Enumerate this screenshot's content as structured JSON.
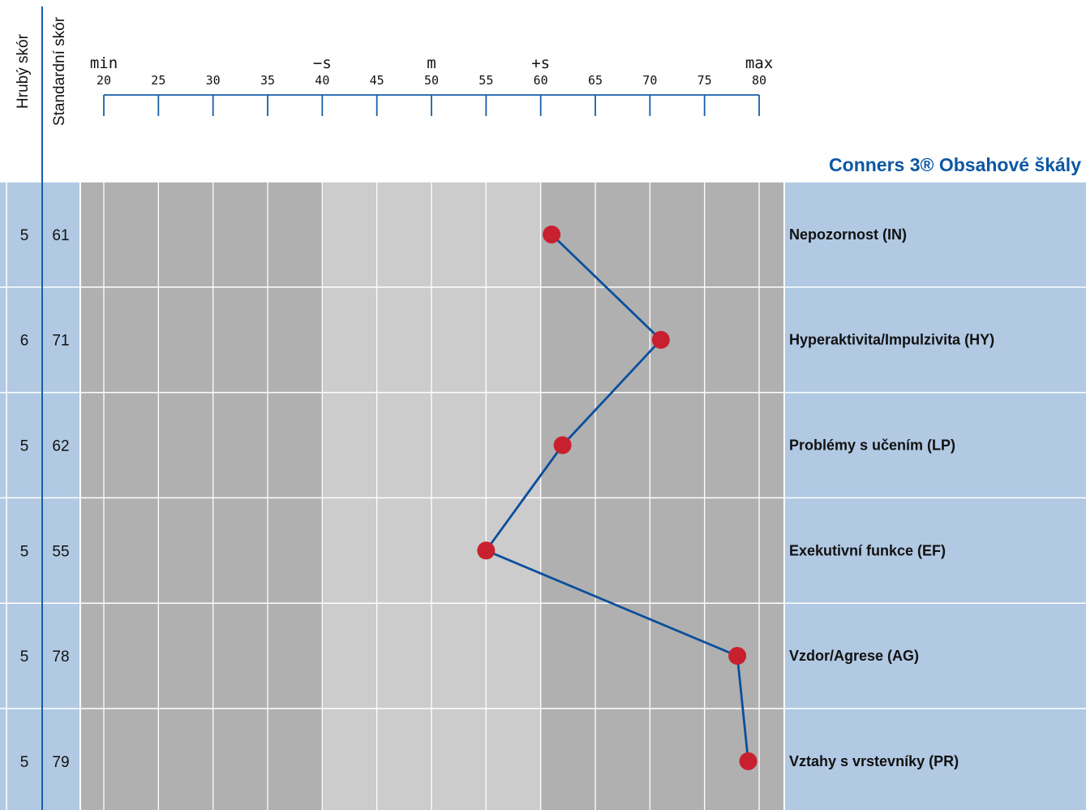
{
  "chart_data": {
    "type": "line",
    "title": "Conners 3® Obsahové škály",
    "column_headers": {
      "raw_score": "Hrubý skór",
      "standard_score": "Standardní skór"
    },
    "axis": {
      "min": 20,
      "max": 80,
      "ticks": [
        20,
        25,
        30,
        35,
        40,
        45,
        50,
        55,
        60,
        65,
        70,
        75,
        80
      ],
      "markers": [
        {
          "label": "min",
          "value": 20
        },
        {
          "label": "−s",
          "value": 40
        },
        {
          "label": "m",
          "value": 50
        },
        {
          "label": "+s",
          "value": 60
        },
        {
          "label": "max",
          "value": 80
        }
      ]
    },
    "shading": {
      "light_band": [
        40,
        60
      ],
      "dark_color": "#b0b0b0",
      "light_color": "#cccccc"
    },
    "rows": [
      {
        "label": "Nepozornost (IN)",
        "raw": "5",
        "standard": "61",
        "value": 61
      },
      {
        "label": "Hyperaktivita/Impulzivita (HY)",
        "raw": "6",
        "standard": "71",
        "value": 71
      },
      {
        "label": "Problémy s učením (LP)",
        "raw": "5",
        "standard": "62",
        "value": 62
      },
      {
        "label": "Exekutivní funkce (EF)",
        "raw": "5",
        "standard": "55",
        "value": 55
      },
      {
        "label": "Vzdor/Agrese (AG)",
        "raw": "5",
        "standard": "78",
        "value": 78
      },
      {
        "label": "Vztahy s vrstevníky (PR)",
        "raw": "5",
        "standard": "79",
        "value": 79
      }
    ],
    "colors": {
      "line": "#0b4f9c",
      "point": "#c8202f",
      "row_band": "#b1c9e3",
      "axis": "#1a5ea8",
      "title": "#0b57a4"
    }
  }
}
